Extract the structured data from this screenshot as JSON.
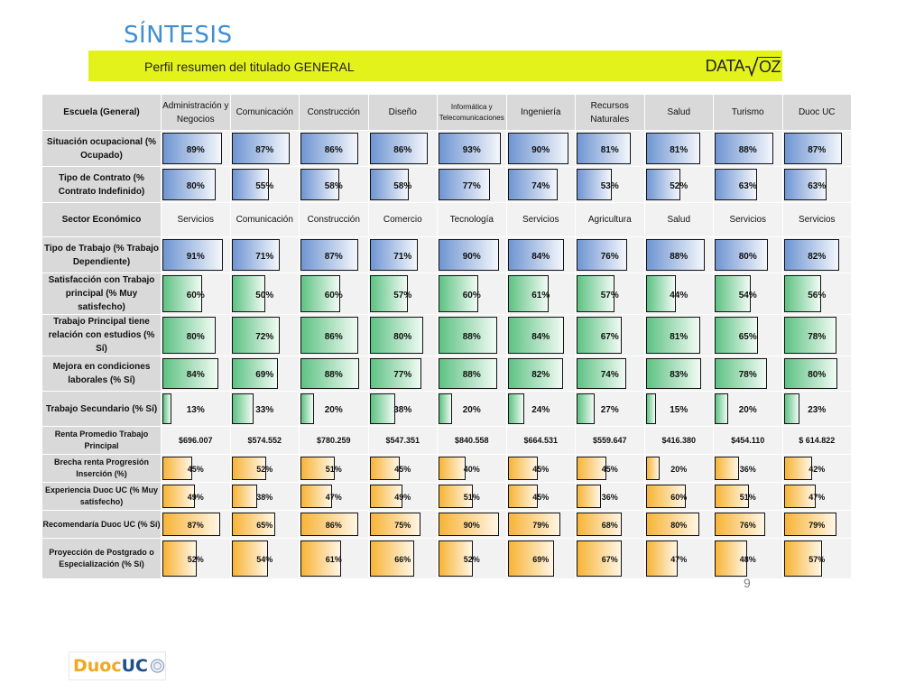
{
  "title": "SÍNTESIS",
  "subtitle": "Perfil resumen del titulado GENERAL",
  "brand": {
    "logo_text": "DATA",
    "logo_text2": "OZ"
  },
  "page_number": "9",
  "footer_logo": {
    "part1": "Duoc",
    "part2": "UC"
  },
  "colors": {
    "title": "#3f8fd2",
    "banner": "#e4f21c",
    "blue_bar": "#6f95d2",
    "green_bar": "#5ec283",
    "orange_bar": "#f7b437",
    "label_bg": "#d9d9d9"
  },
  "table": {
    "header_label": "Escuela (General)",
    "schools": [
      "Administración y Negocios",
      "Comunicación",
      "Construcción",
      "Diseño",
      "Informática y Telecomunicaciones",
      "Ingeniería",
      "Recursos Naturales",
      "Salud",
      "Turismo",
      "Duoc UC"
    ],
    "rows": [
      {
        "label": "Situación ocupacional (% Ocupado)",
        "kind": "bar",
        "color": "blue",
        "values": [
          "89%",
          "87%",
          "86%",
          "86%",
          "93%",
          "90%",
          "81%",
          "81%",
          "88%",
          "87%"
        ]
      },
      {
        "label": "Tipo de Contrato    (% Contrato Indefinido)",
        "kind": "bar",
        "color": "blue",
        "values": [
          "80%",
          "55%",
          "58%",
          "58%",
          "77%",
          "74%",
          "53%",
          "52%",
          "63%",
          "63%"
        ]
      },
      {
        "label": "Sector Económico",
        "kind": "text",
        "values": [
          "Servicios",
          "Comunicación",
          "Construcción",
          "Comercio",
          "Tecnología",
          "Servicios",
          "Agricultura",
          "Salud",
          "Servicios",
          "Servicios"
        ]
      },
      {
        "label": "Tipo de Trabajo (% Trabajo Dependiente)",
        "kind": "bar",
        "color": "blue",
        "values": [
          "91%",
          "71%",
          "87%",
          "71%",
          "90%",
          "84%",
          "76%",
          "88%",
          "80%",
          "82%"
        ]
      },
      {
        "label": "Satisfacción con Trabajo principal (% Muy satisfecho)",
        "kind": "bar",
        "color": "green",
        "values": [
          "60%",
          "50%",
          "60%",
          "57%",
          "60%",
          "61%",
          "57%",
          "44%",
          "54%",
          "56%"
        ]
      },
      {
        "label": "Trabajo Principal tiene relación con estudios (% Sí)",
        "kind": "bar",
        "color": "green",
        "values": [
          "80%",
          "72%",
          "86%",
          "80%",
          "88%",
          "84%",
          "67%",
          "81%",
          "65%",
          "78%"
        ]
      },
      {
        "label": "Mejora en condiciones laborales (% Sí)",
        "kind": "bar",
        "color": "green",
        "values": [
          "84%",
          "69%",
          "88%",
          "77%",
          "88%",
          "82%",
          "74%",
          "83%",
          "78%",
          "80%"
        ]
      },
      {
        "label": "Trabajo Secundario (% Sí)",
        "kind": "bar",
        "color": "green",
        "values": [
          "13%",
          "33%",
          "20%",
          "38%",
          "20%",
          "24%",
          "27%",
          "15%",
          "20%",
          "23%"
        ]
      },
      {
        "label": "Renta Promedio Trabajo Principal",
        "kind": "money",
        "values": [
          "$696.007",
          "$574.552",
          "$780.259",
          "$547.351",
          "$840.558",
          "$664.531",
          "$559.647",
          "$416.380",
          "$454.110",
          "$ 614.822"
        ]
      },
      {
        "label": "Brecha renta Progresión Inserción (%)",
        "kind": "bar",
        "color": "orange",
        "values": [
          "45%",
          "52%",
          "51%",
          "45%",
          "40%",
          "45%",
          "45%",
          "20%",
          "36%",
          "42%"
        ]
      },
      {
        "label": "Experiencia Duoc UC (% Muy satisfecho)",
        "kind": "bar",
        "color": "orange",
        "values": [
          "49%",
          "38%",
          "47%",
          "49%",
          "51%",
          "45%",
          "36%",
          "60%",
          "51%",
          "47%"
        ]
      },
      {
        "label": "Recomendaría Duoc UC (% Sí)",
        "kind": "bar",
        "color": "orange",
        "values": [
          "87%",
          "65%",
          "86%",
          "75%",
          "90%",
          "79%",
          "68%",
          "80%",
          "76%",
          "79%"
        ]
      },
      {
        "label": "Proyección de Postgrado o Especialización (% Sí)",
        "kind": "bar",
        "color": "orange",
        "values": [
          "52%",
          "54%",
          "61%",
          "66%",
          "52%",
          "69%",
          "67%",
          "47%",
          "48%",
          "57%"
        ]
      }
    ]
  }
}
